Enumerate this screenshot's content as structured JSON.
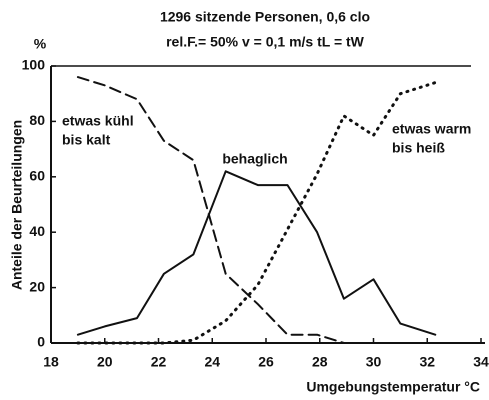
{
  "chart_data": {
    "type": "line",
    "title": "1296 sitzende Personen, 0,6 clo",
    "subtitle": "rel.F.= 50%  v = 0,1 m/s  tL = tW",
    "y_unit": "%",
    "xlabel": "Umgebungstemperatur  °C",
    "ylabel": "Anteile der Beurteilungen",
    "x": [
      19.0,
      20.0,
      21.2,
      22.2,
      23.3,
      24.5,
      25.7,
      26.8,
      27.9,
      28.9,
      30.0,
      31.0,
      32.3
    ],
    "series": [
      {
        "name": [
          "etwas kühl",
          "bis kalt"
        ],
        "color": "#111111",
        "style": "dashed",
        "values": [
          96,
          93,
          88,
          73,
          66,
          25,
          14,
          3,
          3,
          0,
          null,
          null,
          null
        ]
      },
      {
        "name": [
          "behaglich"
        ],
        "color": "#111111",
        "style": "solid",
        "values": [
          3,
          6,
          9,
          25,
          32,
          62,
          57,
          57,
          40,
          16,
          23,
          7,
          3
        ]
      },
      {
        "name": [
          "etwas warm",
          "bis heiß"
        ],
        "color": "#111111",
        "style": "dotted",
        "values": [
          0,
          0,
          0,
          0,
          1,
          8,
          21,
          41,
          61,
          82,
          75,
          90,
          94
        ]
      }
    ],
    "xlim": [
      18,
      34
    ],
    "ylim": [
      0,
      100
    ],
    "xticks": [
      18,
      20,
      22,
      24,
      26,
      28,
      30,
      32,
      34
    ],
    "yticks": [
      0,
      20,
      40,
      60,
      80,
      100
    ]
  }
}
